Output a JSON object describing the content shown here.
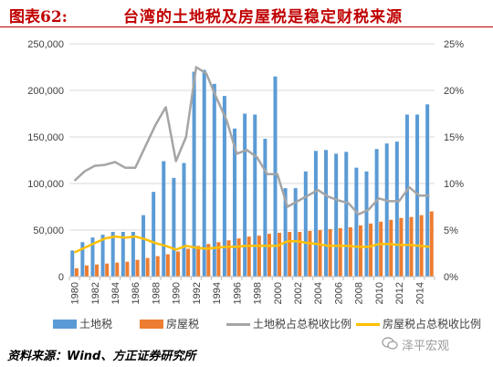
{
  "figure": {
    "label": "图表62:",
    "title": "台湾的土地税及房屋税是稳定财税来源"
  },
  "source": "资料来源：Wind、方正证券研究所",
  "watermark": "泽平宏观",
  "colors": {
    "bar_land": "#5b9bd5",
    "bar_house": "#ed7d31",
    "line_land_share": "#a5a5a5",
    "line_house_share": "#ffc000",
    "title_red": "#c00000"
  },
  "chart_data": {
    "type": "bar",
    "x": [
      1980,
      1981,
      1982,
      1983,
      1984,
      1985,
      1986,
      1987,
      1988,
      1989,
      1990,
      1991,
      1992,
      1993,
      1994,
      1995,
      1996,
      1997,
      1998,
      1999,
      2000,
      2001,
      2002,
      2003,
      2004,
      2005,
      2006,
      2007,
      2008,
      2009,
      2010,
      2011,
      2012,
      2013,
      2014,
      2015
    ],
    "x_tick_labels": [
      "1980",
      "1982",
      "1984",
      "1986",
      "1988",
      "1990",
      "1992",
      "1994",
      "1996",
      "1998",
      "2000",
      "2002",
      "2004",
      "2006",
      "2008",
      "2010",
      "2012",
      "2014"
    ],
    "y_left": {
      "ticks": [
        "0",
        "50,000",
        "100,000",
        "150,000",
        "200,000",
        "250,000"
      ],
      "ylim": [
        0,
        250000
      ]
    },
    "y_right": {
      "ticks": [
        "0%",
        "5%",
        "10%",
        "15%",
        "20%",
        "25%"
      ],
      "ylim": [
        0,
        25
      ]
    },
    "series": [
      {
        "name": "土地税",
        "kind": "bar",
        "axis": "left",
        "values": [
          28000,
          37000,
          42000,
          45000,
          48000,
          48000,
          48000,
          66000,
          91000,
          124000,
          106000,
          122000,
          220000,
          222000,
          207000,
          194000,
          159000,
          175000,
          174000,
          148000,
          215000,
          95000,
          95000,
          113000,
          135000,
          136000,
          132000,
          134000,
          117000,
          113000,
          137000,
          143000,
          145000,
          174000,
          174000,
          185000
        ]
      },
      {
        "name": "房屋税",
        "kind": "bar",
        "axis": "right_none",
        "values": [
          9000,
          12000,
          13000,
          14000,
          15000,
          16000,
          18000,
          20000,
          22000,
          24000,
          27000,
          30000,
          33000,
          35000,
          37000,
          39000,
          41000,
          43000,
          44000,
          46000,
          47000,
          48000,
          48000,
          49000,
          50000,
          51000,
          52000,
          53000,
          55000,
          57000,
          59000,
          61000,
          63000,
          64000,
          66000,
          70000
        ]
      },
      {
        "name": "土地税占总税收比例",
        "kind": "line",
        "axis": "right",
        "values": [
          10.3,
          11.3,
          11.9,
          12.0,
          12.3,
          11.7,
          11.7,
          14.0,
          16.3,
          18.2,
          12.4,
          15.0,
          22.5,
          21.8,
          19.2,
          16.8,
          13.2,
          13.6,
          12.8,
          11.0,
          11.0,
          7.5,
          8.1,
          8.7,
          9.3,
          8.6,
          8.2,
          7.9,
          6.7,
          7.2,
          8.4,
          8.1,
          8.1,
          9.6,
          8.7,
          8.7
        ]
      },
      {
        "name": "房屋税占总税收比例",
        "kind": "line",
        "axis": "right",
        "values": [
          2.6,
          3.1,
          3.6,
          4.1,
          4.3,
          4.2,
          4.3,
          4.0,
          3.6,
          3.3,
          2.9,
          3.3,
          3.1,
          3.0,
          3.1,
          3.2,
          3.2,
          3.3,
          3.3,
          3.3,
          3.3,
          3.8,
          3.8,
          3.6,
          3.5,
          3.3,
          3.3,
          3.3,
          3.2,
          3.2,
          3.5,
          3.5,
          3.4,
          3.4,
          3.3,
          3.2
        ]
      }
    ],
    "grid": true,
    "legend_position": "bottom"
  }
}
